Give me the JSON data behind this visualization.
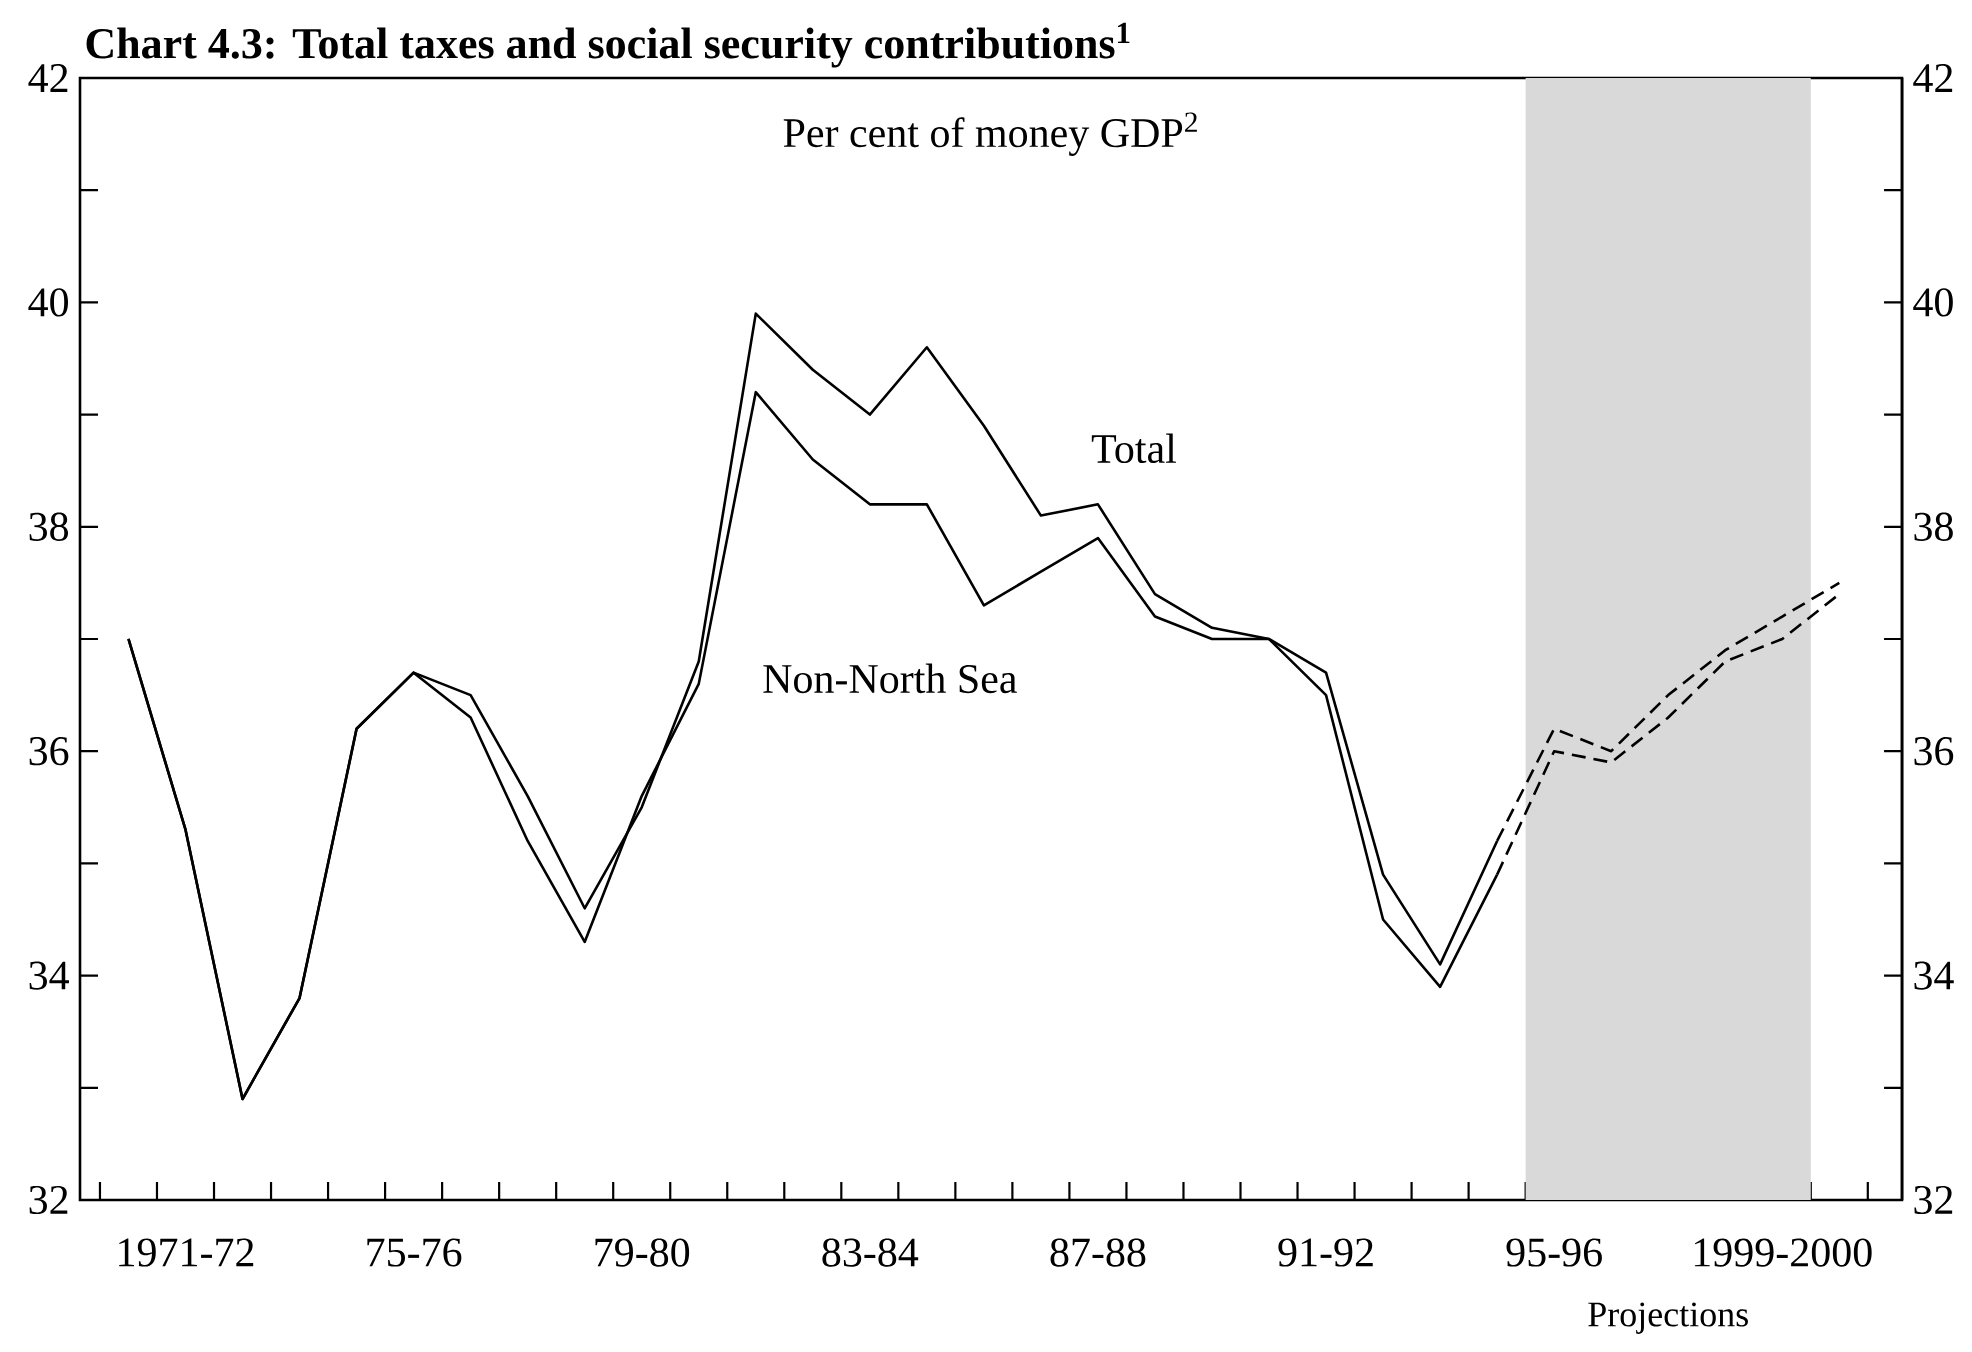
{
  "chart_data": {
    "type": "line",
    "title": "Chart 4.3: Total taxes and social security contributions$^{1}$",
    "annotations": [
      "Per cent of money GDP$^{2}$"
    ],
    "categories": [
      null,
      "1971-72",
      null,
      null,
      null,
      "75-76",
      null,
      null,
      null,
      "79-80",
      null,
      null,
      null,
      "83-84",
      null,
      null,
      null,
      "87-88",
      null,
      null,
      null,
      "91-92",
      null,
      null,
      null,
      "95-96",
      null,
      null,
      null,
      "1999-2000",
      null
    ],
    "ylim": [
      32,
      42
    ],
    "yticks": [
      32,
      {
        "value": 33,
        "label": null
      },
      34,
      {
        "value": 35,
        "label": null
      },
      36,
      {
        "value": 37,
        "label": null
      },
      38,
      {
        "value": 39,
        "label": null
      },
      40,
      {
        "value": 41,
        "label": null
      },
      42
    ],
    "y2lim": [
      32,
      42
    ],
    "y2ticks": [
      32,
      {
        "value": 33,
        "label": null
      },
      34,
      {
        "value": 35,
        "label": null
      },
      36,
      {
        "value": 37,
        "label": null
      },
      38,
      {
        "value": 39,
        "label": null
      },
      40,
      {
        "value": 41,
        "label": null
      },
      42
    ],
    "bands": [
      {
        "axis": "x",
        "from": "95-96",
        "to": "1999-2000",
        "label": "Projections",
        "color": "#d9d9d9"
      }
    ],
    "marker": "none",
    "series": [
      {
        "name": "Total",
        "color": "#000000",
        "line_style": "solid",
        "values": [
          37.0,
          35.3,
          32.9,
          33.8,
          36.2,
          36.7,
          36.5,
          35.6,
          34.6,
          35.5,
          36.8,
          39.9,
          39.4,
          39.0,
          39.6,
          38.9,
          38.1,
          38.2,
          37.4,
          37.1,
          37.0,
          36.7,
          34.9,
          34.1,
          35.2,
          null,
          null,
          null,
          null,
          null,
          null
        ]
      },
      {
        "name": "Non-North Sea",
        "color": "#000000",
        "line_style": "solid",
        "values": [
          37.0,
          35.3,
          32.9,
          33.8,
          36.2,
          36.7,
          36.3,
          35.2,
          34.3,
          35.6,
          36.6,
          39.2,
          38.6,
          38.2,
          38.2,
          37.3,
          37.6,
          37.9,
          37.2,
          37.0,
          37.0,
          36.5,
          34.5,
          33.9,
          34.9,
          null,
          null,
          null,
          null,
          null,
          null
        ]
      },
      {
        "color": "#000000",
        "line_style": "dashed",
        "values": [
          null,
          null,
          null,
          null,
          null,
          null,
          null,
          null,
          null,
          null,
          null,
          null,
          null,
          null,
          null,
          null,
          null,
          null,
          null,
          null,
          null,
          null,
          null,
          null,
          35.2,
          36.2,
          36.0,
          36.5,
          36.9,
          37.2,
          37.5
        ]
      },
      {
        "color": "#000000",
        "line_style": "dashed",
        "values": [
          null,
          null,
          null,
          null,
          null,
          null,
          null,
          null,
          null,
          null,
          null,
          null,
          null,
          null,
          null,
          null,
          null,
          null,
          null,
          null,
          null,
          null,
          null,
          null,
          34.9,
          36.0,
          35.9,
          36.3,
          36.8,
          37.0,
          37.4
        ]
      }
    ]
  }
}
